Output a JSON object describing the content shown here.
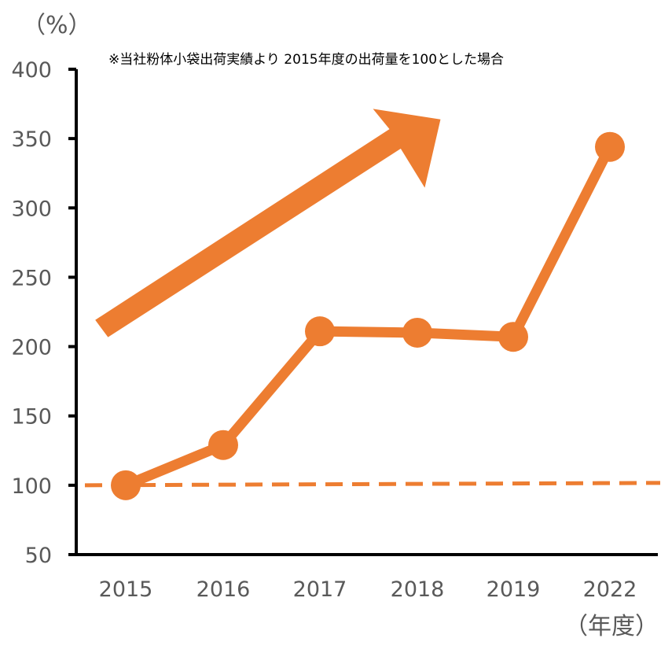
{
  "chart_data": {
    "type": "line",
    "y_unit": "（%）",
    "x_unit": "（年度）",
    "note": "※当社粉体小袋出荷実績より 2015年度の出荷量を100とした場合",
    "categories": [
      "2015",
      "2016",
      "2017",
      "2018",
      "2019",
      "2022"
    ],
    "series": [
      {
        "values": [
          100,
          129,
          211,
          210,
          207,
          344
        ]
      }
    ],
    "baseline": 100,
    "ylim": [
      50,
      400
    ],
    "yticks": [
      "50",
      "100",
      "150",
      "200",
      "250",
      "300",
      "350",
      "400"
    ],
    "grid": false,
    "legend": "none",
    "colors": {
      "line": "#ED7D31",
      "axis": "#000000",
      "text": "#595959"
    },
    "annotations": [
      "upward-trend-arrow"
    ]
  }
}
